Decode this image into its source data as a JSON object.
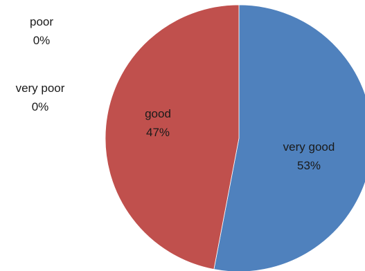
{
  "chart_data": {
    "type": "pie",
    "slices": [
      {
        "label": "very good",
        "value": 53,
        "percent_label": "53%",
        "color": "#4f81bd"
      },
      {
        "label": "good",
        "value": 47,
        "percent_label": "47%",
        "color": "#c0504d"
      },
      {
        "label": "poor",
        "value": 0,
        "percent_label": "0%",
        "color": "#9bbb59"
      },
      {
        "label": "very poor",
        "value": 0,
        "percent_label": "0%",
        "color": "#8064a2"
      }
    ],
    "title": "",
    "legend": "none"
  }
}
